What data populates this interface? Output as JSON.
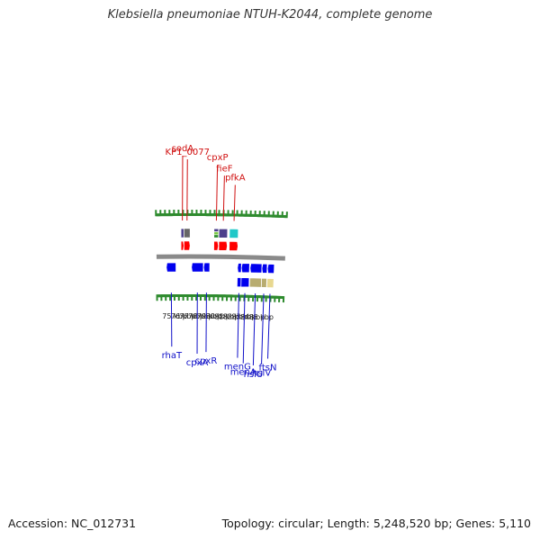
{
  "title": "Klebsiella pneumoniae NTUH-K2044, complete genome",
  "footer": {
    "accession": "Accession: NC_012731",
    "topology": "Topology: circular; Length: 5,248,520 bp; Genes: 5,110"
  },
  "colors": {
    "backbone": "#8a8a8a",
    "tick": "#2e8b2e",
    "label_top": "#d01010",
    "label_bottom": "#1010c8",
    "scale_text": "#222222"
  },
  "scale": {
    "ticks": [
      {
        "kbp": 75,
        "label": "75 kbp"
      },
      {
        "kbp": 76,
        "label": "76 kbp"
      },
      {
        "kbp": 77,
        "label": "77 kbp"
      },
      {
        "kbp": 78,
        "label": "78 kbp"
      },
      {
        "kbp": 79,
        "label": "79 kbp"
      },
      {
        "kbp": 80,
        "label": "80 kbp"
      },
      {
        "kbp": 81,
        "label": "81 kbp"
      },
      {
        "kbp": 82,
        "label": "82 kbp"
      },
      {
        "kbp": 83,
        "label": "83 kbp"
      },
      {
        "kbp": 84,
        "label": "84 kbp"
      },
      {
        "kbp": 85,
        "label": "85 kbp"
      }
    ]
  },
  "features": [
    {
      "name": "sodA",
      "strand": "+",
      "start": 75.77,
      "end": 76.08,
      "tracks": [
        {
          "track": 3,
          "color": "#4b3f8c"
        },
        {
          "track": 2,
          "color": "#ff0000",
          "arrow": true
        }
      ]
    },
    {
      "name": "KP1_0077",
      "strand": "+",
      "start": 76.1,
      "end": 76.78,
      "tracks": [
        {
          "track": 3,
          "color": "#666666"
        },
        {
          "track": 2,
          "color": "#ff0000",
          "arrow": true
        }
      ]
    },
    {
      "name": "cpxP",
      "strand": "+",
      "start": 79.45,
      "end": 79.95,
      "tracks": [
        {
          "track": 3,
          "color": "#4b3f8c",
          "stripes": [
            "#4b3f8c",
            "#7ac943",
            "#2e8b2e"
          ]
        },
        {
          "track": 2,
          "color": "#ff0000",
          "arrow": true
        }
      ]
    },
    {
      "name": "fieF",
      "strand": "+",
      "start": 80.0,
      "end": 80.95,
      "tracks": [
        {
          "track": 3,
          "color": "#4b3f8c"
        },
        {
          "track": 2,
          "color": "#ff0000",
          "arrow": true
        }
      ]
    },
    {
      "name": "pfkA",
      "strand": "+",
      "start": 81.18,
      "end": 82.15,
      "tracks": [
        {
          "track": 3,
          "color": "#20c8c8"
        },
        {
          "track": 2,
          "color": "#ff0000",
          "arrow": true
        }
      ]
    },
    {
      "name": "rhaT",
      "strand": "-",
      "start": 74.1,
      "end": 75.18,
      "tracks": [
        {
          "track": 1,
          "color": "#0000ee",
          "arrow": true
        }
      ]
    },
    {
      "name": "cpxA",
      "strand": "-",
      "start": 76.95,
      "end": 78.28,
      "tracks": [
        {
          "track": 1,
          "color": "#0000ee",
          "arrow": true
        }
      ]
    },
    {
      "name": "cpxR",
      "strand": "-",
      "start": 78.32,
      "end": 79.0,
      "tracks": [
        {
          "track": 1,
          "color": "#0000ee",
          "arrow": true
        }
      ]
    },
    {
      "name": "menG",
      "strand": "-",
      "start": 82.15,
      "end": 82.58,
      "tracks": [
        {
          "track": 1,
          "color": "#0000ee",
          "arrow": true
        },
        {
          "track": 0,
          "color": "#0000ee"
        }
      ]
    },
    {
      "name": "menA",
      "strand": "-",
      "start": 82.6,
      "end": 83.5,
      "tracks": [
        {
          "track": 1,
          "color": "#0000ee",
          "arrow": true
        },
        {
          "track": 0,
          "color": "#0000ee"
        }
      ]
    },
    {
      "name": "hslU",
      "strand": "-",
      "start": 83.58,
      "end": 84.9,
      "tracks": [
        {
          "track": 1,
          "color": "#0000ee",
          "arrow": true
        },
        {
          "track": 0,
          "color": "#b8ac70"
        }
      ]
    },
    {
      "name": "hslV",
      "strand": "-",
      "start": 84.92,
      "end": 85.5,
      "tracks": [
        {
          "track": 1,
          "color": "#0000ee",
          "arrow": true
        },
        {
          "track": 0,
          "color": "#b8ac70"
        }
      ]
    },
    {
      "name": "ftsN",
      "strand": "-",
      "start": 85.55,
      "end": 86.3,
      "tracks": [
        {
          "track": 1,
          "color": "#0000ee",
          "arrow": true
        },
        {
          "track": 0,
          "color": "#e8d890"
        }
      ]
    }
  ]
}
